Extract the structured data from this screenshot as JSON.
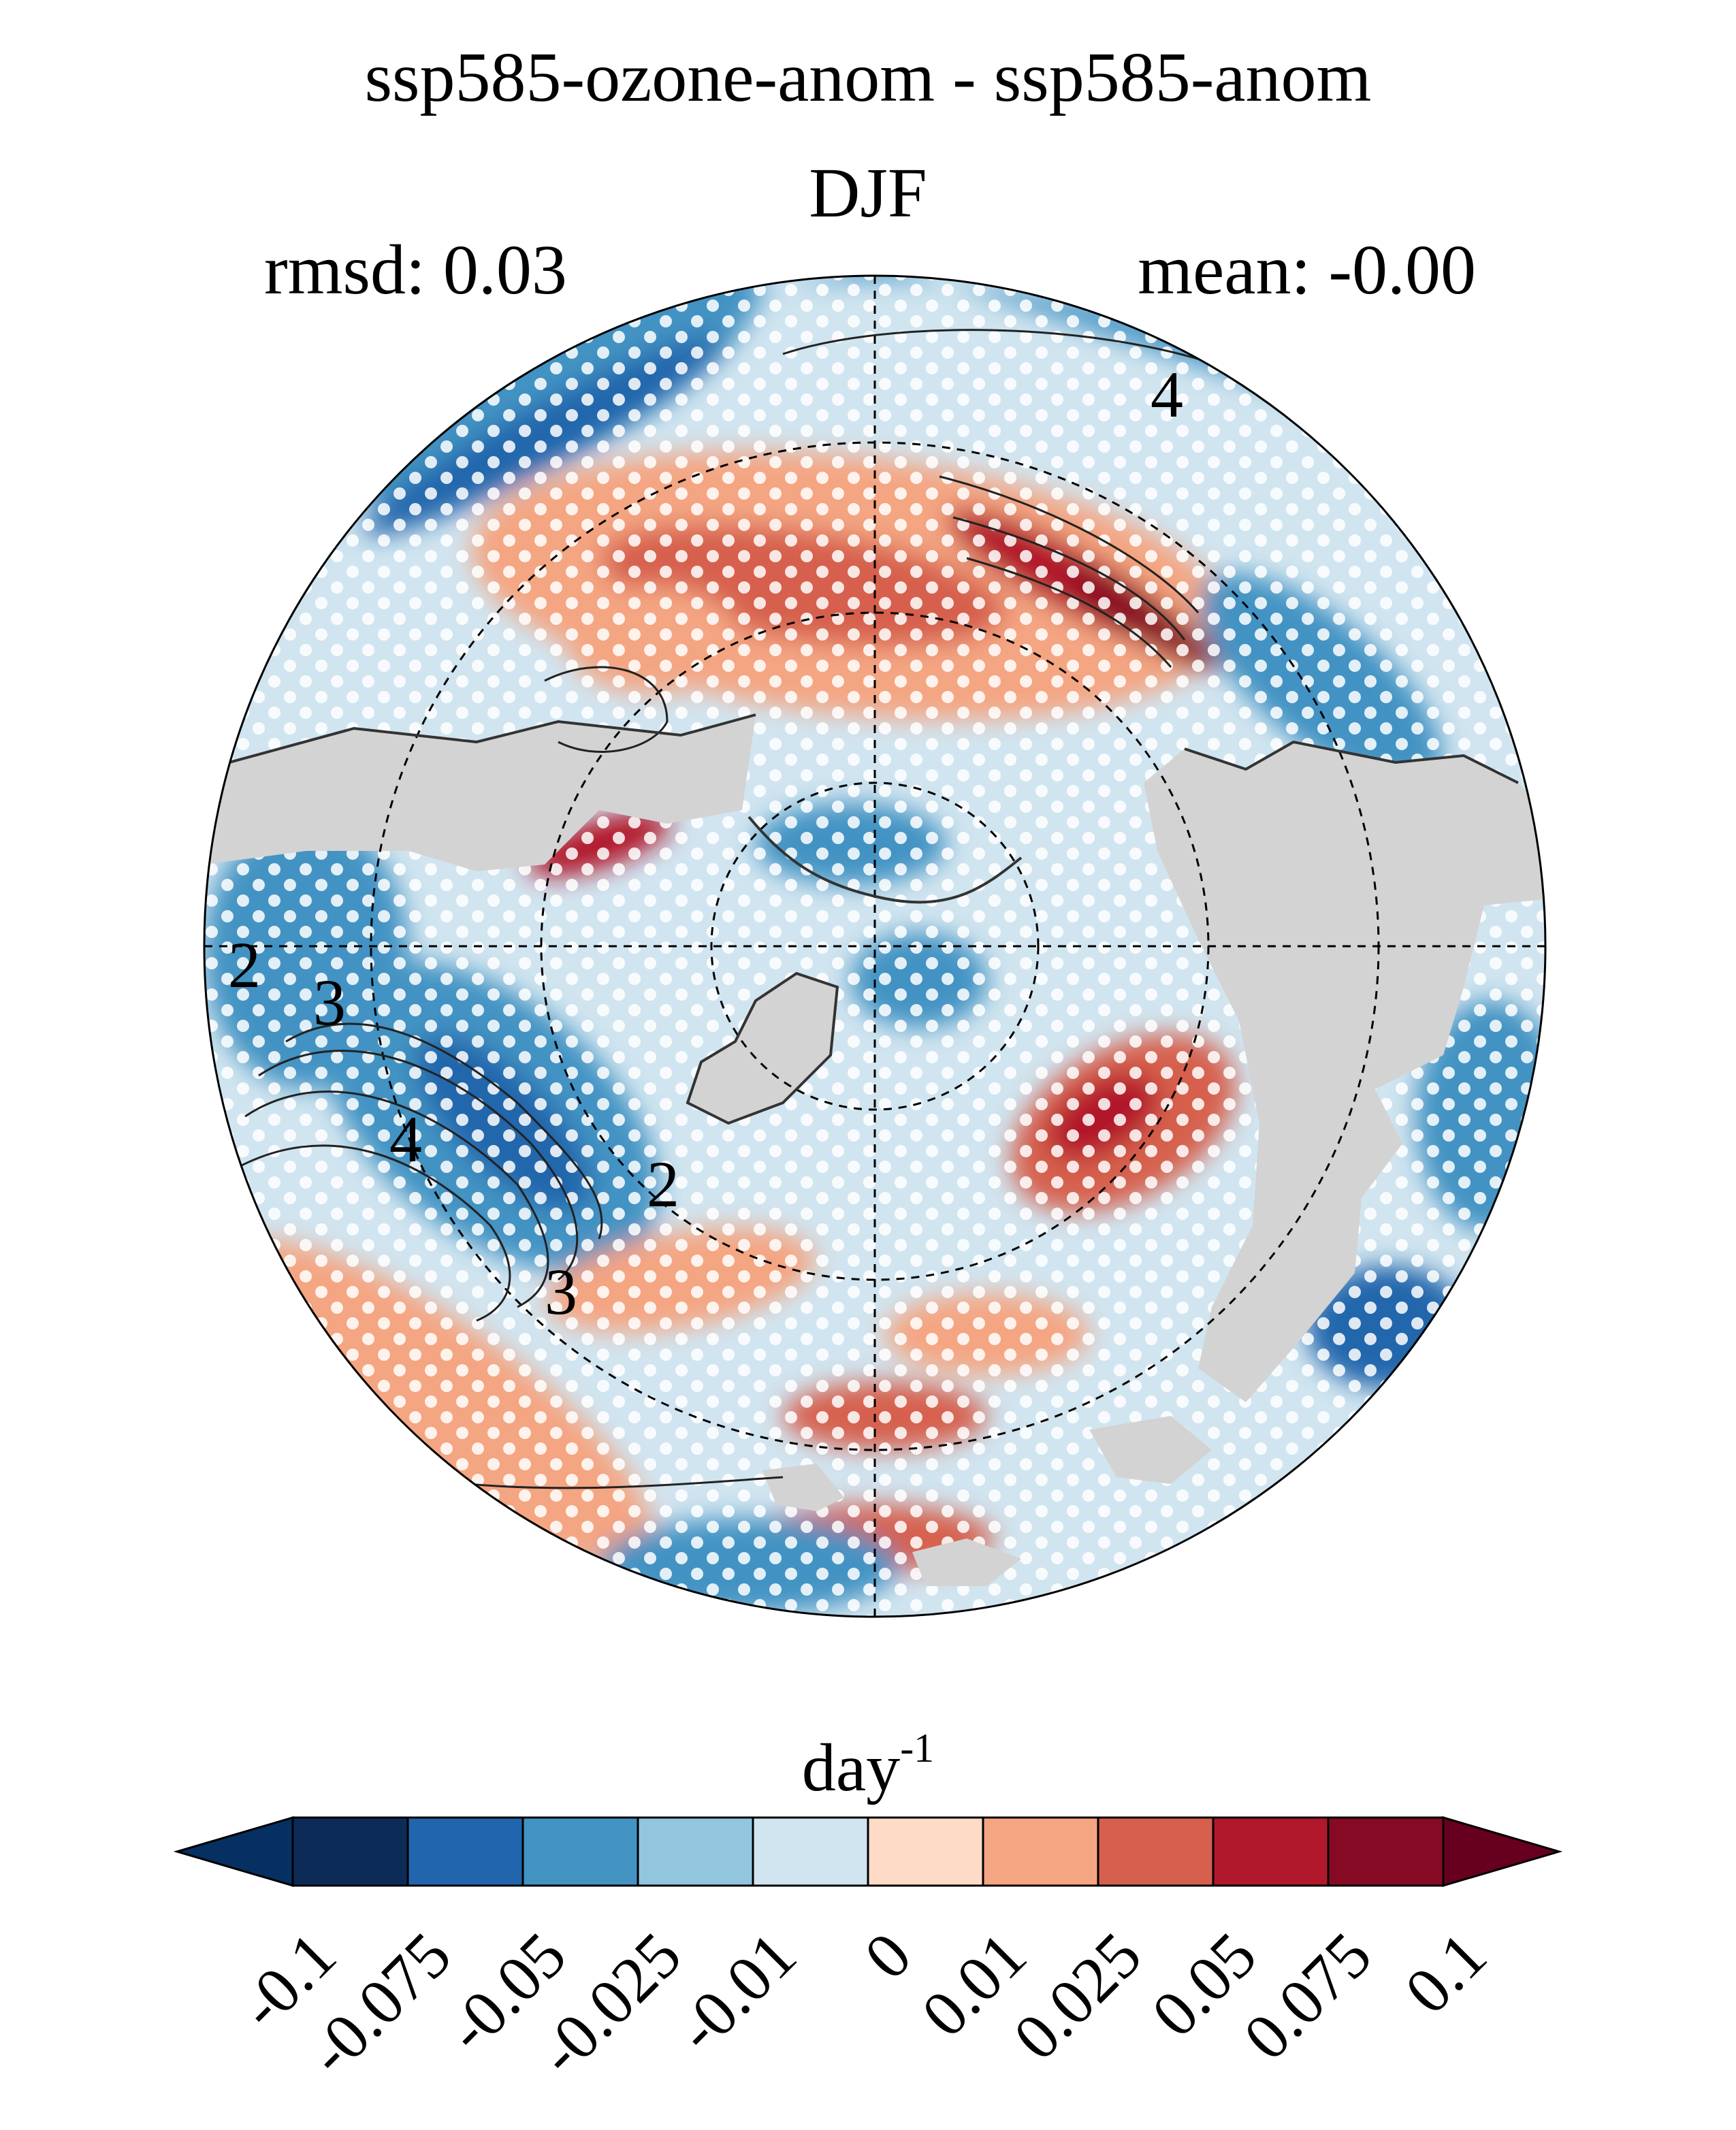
{
  "header": {
    "title": "ssp585-ozone-anom - ssp585-anom",
    "season": "DJF",
    "rmsd_text": "rmsd: 0.03",
    "mean_text": "mean: -0.00"
  },
  "map": {
    "projection": "north-polar-stereographic",
    "land_mask_color": "#d3d3d3",
    "stippling_color": "#ffffff",
    "contour_labels": [
      "4",
      "4",
      "3",
      "2",
      "3",
      "2"
    ]
  },
  "colorbar": {
    "unit_base": "day",
    "unit_exponent": "-1",
    "extend": "both",
    "tick_labels": [
      "-0.1",
      "-0.075",
      "-0.05",
      "-0.025",
      "-0.01",
      "0",
      "0.01",
      "0.025",
      "0.05",
      "0.075",
      "0.1"
    ],
    "colors": [
      "#053061",
      "#0d2b57",
      "#2166ac",
      "#4393c3",
      "#92c5de",
      "#d1e5f0",
      "#fddbc7",
      "#f4a582",
      "#d6604d",
      "#b2182b",
      "#870a24",
      "#67001f"
    ]
  }
}
